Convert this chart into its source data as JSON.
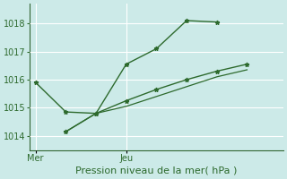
{
  "title": "Pression niveau de la mer( hPa )",
  "bg_color": "#cceae8",
  "grid_color": "#ffffff",
  "line_color": "#2d6a2d",
  "marker_color": "#2d6a2d",
  "ylim": [
    1013.5,
    1018.7
  ],
  "yticks": [
    1014,
    1015,
    1016,
    1017,
    1018
  ],
  "xtick_labels": [
    "Mer",
    "Jeu"
  ],
  "xtick_positions": [
    0,
    3
  ],
  "xlim": [
    -0.2,
    8.2
  ],
  "series1_x": [
    0,
    1,
    2,
    3,
    4,
    5,
    6
  ],
  "series1_y": [
    1015.9,
    1014.85,
    1014.8,
    1016.55,
    1017.1,
    1018.1,
    1018.05
  ],
  "series2_x": [
    1,
    2,
    3,
    4,
    5,
    6,
    7
  ],
  "series2_y": [
    1014.15,
    1014.8,
    1015.25,
    1015.65,
    1016.0,
    1016.3,
    1016.55
  ],
  "series3_x": [
    1,
    2,
    3,
    4,
    5,
    6,
    7
  ],
  "series3_y": [
    1014.15,
    1014.8,
    1015.05,
    1015.4,
    1015.75,
    1016.1,
    1016.35
  ],
  "vline_x": 3,
  "vline_color": "#888899",
  "spine_color": "#336633",
  "xlabel_fontsize": 8,
  "tick_fontsize": 7,
  "label_color": "#2d6a2d"
}
